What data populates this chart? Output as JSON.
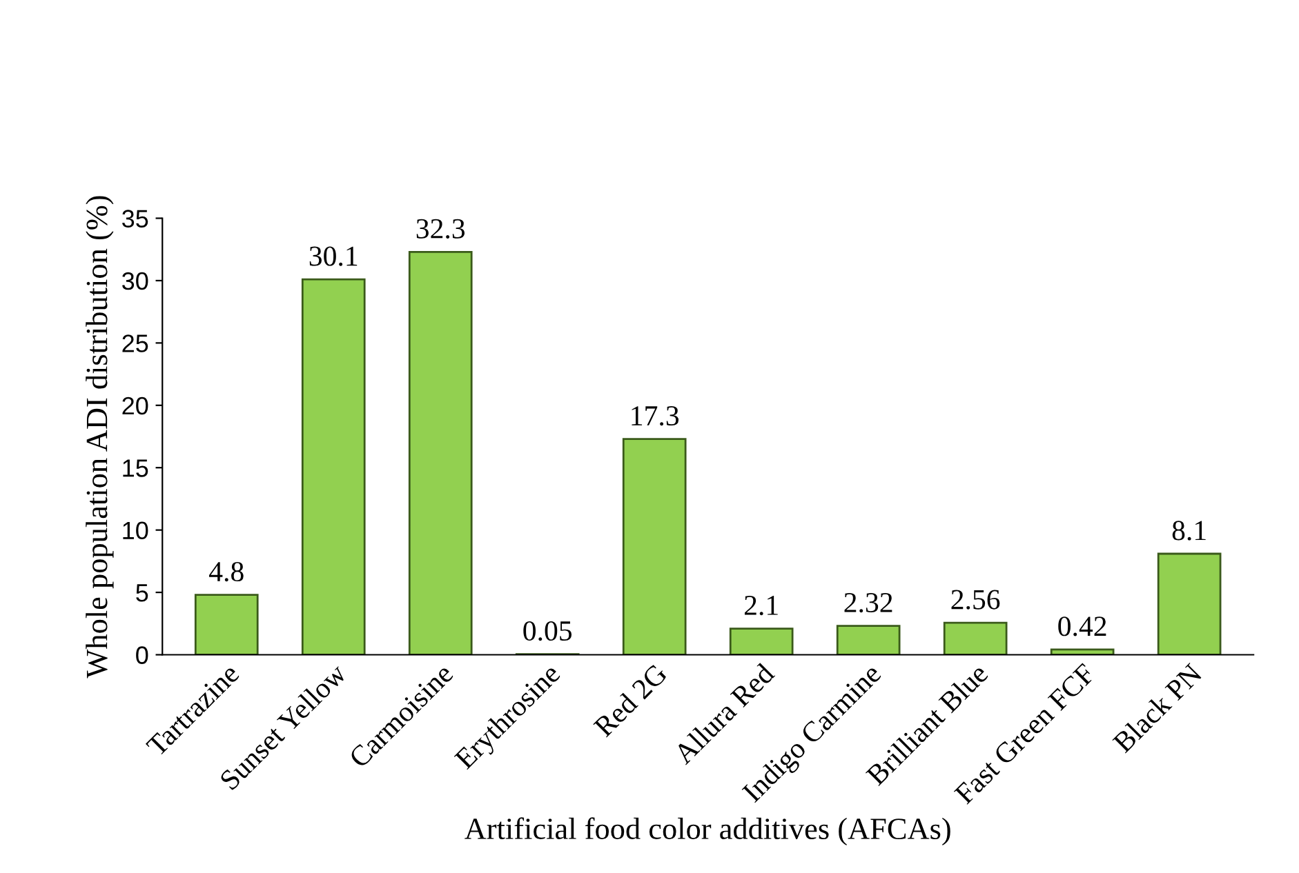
{
  "chart_data": {
    "type": "bar",
    "xlabel": "Artificial food color additives (AFCAs)",
    "ylabel": "Whole population ADI distribution (%)",
    "categories": [
      "Tartrazine",
      "Sunset Yellow",
      "Carmoisine",
      "Erythrosine",
      "Red 2G",
      "Allura Red",
      "Indigo Carmine",
      "Brilliant Blue",
      "Fast Green FCF",
      "Black PN"
    ],
    "values": [
      4.8,
      30.1,
      32.3,
      0.05,
      17.3,
      2.1,
      2.32,
      2.56,
      0.42,
      8.1
    ],
    "color": "#92d050",
    "ylim": [
      0,
      35
    ],
    "yticks": [
      0,
      5,
      10,
      15,
      20,
      25,
      30,
      35
    ],
    "grid": false,
    "data_labels": true
  }
}
